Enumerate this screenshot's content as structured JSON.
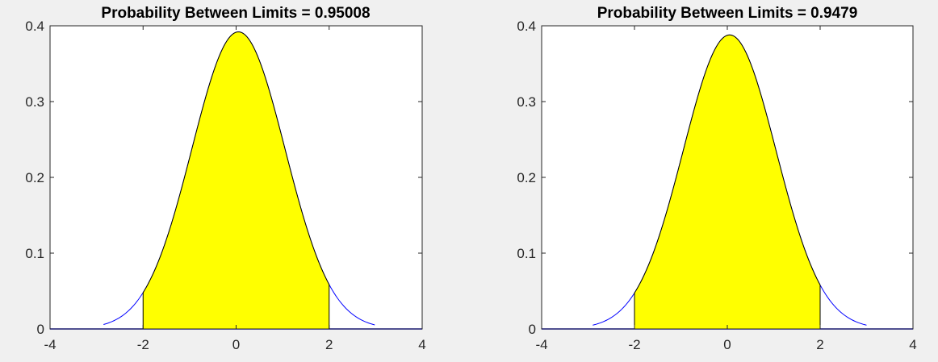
{
  "colors": {
    "figure_background": "#f0f0f0",
    "axes_background": "#ffffff",
    "curve": "#0000ff",
    "fill": "#ffff00",
    "fill_edge": "#000000",
    "axis": "#262626"
  },
  "chart_data": [
    {
      "type": "area",
      "title": "Probability Between Limits = 0.95008",
      "xlabel": "",
      "ylabel": "",
      "xlim": [
        -4,
        4
      ],
      "ylim": [
        0,
        0.4
      ],
      "xticks": [
        "-4",
        "-2",
        "0",
        "2",
        "4"
      ],
      "yticks": [
        "0",
        "0.1",
        "0.2",
        "0.3",
        "0.4"
      ],
      "grid": false,
      "curve": {
        "x_range": [
          -2.85,
          2.98
        ],
        "mean": 0.05,
        "peak": 0.392
      },
      "shaded_interval": [
        -2,
        2
      ],
      "probability": 0.95008
    },
    {
      "type": "area",
      "title": "Probability Between Limits = 0.9479",
      "xlabel": "",
      "ylabel": "",
      "xlim": [
        -4,
        4
      ],
      "ylim": [
        0,
        0.4
      ],
      "xticks": [
        "-4",
        "-2",
        "0",
        "2",
        "4"
      ],
      "yticks": [
        "0",
        "0.1",
        "0.2",
        "0.3",
        "0.4"
      ],
      "grid": false,
      "curve": {
        "x_range": [
          -2.9,
          3.0
        ],
        "mean": 0.05,
        "peak": 0.388
      },
      "shaded_interval": [
        -2,
        2
      ],
      "probability": 0.9479
    }
  ]
}
